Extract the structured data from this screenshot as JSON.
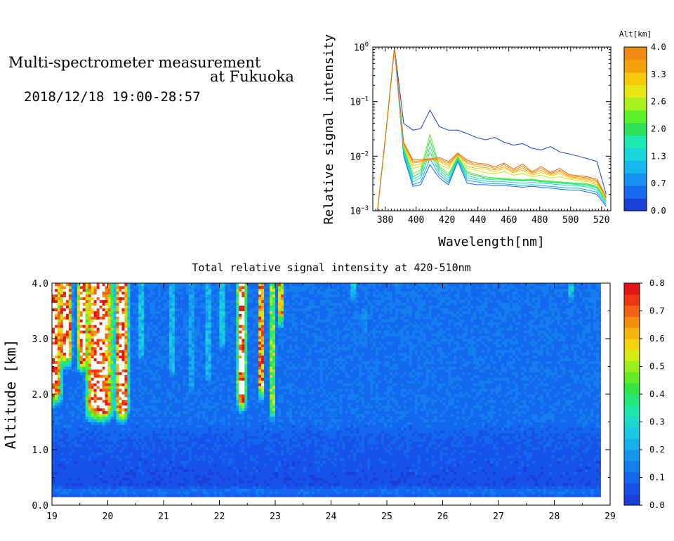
{
  "header": {
    "title_line1": "Multi-spectrometer measurement",
    "title_line2": "at Fukuoka",
    "date_range": "2018/12/18 19:00-28:57"
  },
  "chart_data": [
    {
      "type": "line",
      "xlabel": "Wavelength[nm]",
      "ylabel": "Relative signal intensity",
      "xlim": [
        372,
        526
      ],
      "ylim": [
        0.001,
        1
      ],
      "yscale": "log",
      "x_ticks": [
        380,
        400,
        420,
        440,
        460,
        480,
        500,
        520
      ],
      "y_ticks": [
        {
          "value": 1,
          "mantissa": "10",
          "exponent": "0"
        },
        {
          "value": 0.1,
          "mantissa": "10",
          "exponent": "−1"
        },
        {
          "value": 0.01,
          "mantissa": "10",
          "exponent": "−2"
        },
        {
          "value": 0.001,
          "mantissa": "10",
          "exponent": "−3"
        }
      ],
      "x": [
        375,
        380,
        386,
        392,
        398,
        403,
        409,
        415,
        421,
        427,
        433,
        439,
        445,
        451,
        457,
        463,
        469,
        475,
        481,
        487,
        493,
        499,
        505,
        511,
        517,
        523
      ],
      "series": [
        {
          "alt": 0.0,
          "color": "#1a3fd8",
          "values": [
            0.001,
            0.02,
            1.0,
            0.04,
            0.03,
            0.032,
            0.07,
            0.035,
            0.03,
            0.03,
            0.026,
            0.022,
            0.02,
            0.022,
            0.018,
            0.016,
            0.017,
            0.014,
            0.013,
            0.015,
            0.012,
            0.011,
            0.01,
            0.009,
            0.008,
            0.002
          ]
        },
        {
          "alt": 0.35,
          "color": "#1769ef",
          "values": [
            0.001,
            0.02,
            0.95,
            0.01,
            0.0028,
            0.003,
            0.007,
            0.004,
            0.003,
            0.008,
            0.0032,
            0.003,
            0.003,
            0.0029,
            0.0029,
            0.0028,
            0.0027,
            0.0028,
            0.0027,
            0.0026,
            0.0025,
            0.0024,
            0.0024,
            0.0022,
            0.002,
            0.0012
          ]
        },
        {
          "alt": 0.7,
          "color": "#16a6ee",
          "values": [
            0.001,
            0.02,
            0.95,
            0.011,
            0.003,
            0.0034,
            0.009,
            0.0045,
            0.0033,
            0.0085,
            0.0036,
            0.0034,
            0.0032,
            0.0031,
            0.0031,
            0.003,
            0.0029,
            0.003,
            0.0029,
            0.0028,
            0.0027,
            0.0026,
            0.0026,
            0.0024,
            0.0022,
            0.0013
          ]
        },
        {
          "alt": 1.0,
          "color": "#19d6da",
          "values": [
            0.001,
            0.02,
            0.95,
            0.012,
            0.0034,
            0.004,
            0.012,
            0.005,
            0.0036,
            0.009,
            0.004,
            0.0037,
            0.0035,
            0.0034,
            0.0034,
            0.0033,
            0.0032,
            0.0033,
            0.0032,
            0.0031,
            0.003,
            0.0029,
            0.0029,
            0.0027,
            0.0024,
            0.0014
          ]
        },
        {
          "alt": 1.3,
          "color": "#1ee8b4",
          "values": [
            0.001,
            0.02,
            0.95,
            0.013,
            0.0038,
            0.0045,
            0.015,
            0.0055,
            0.004,
            0.0092,
            0.0044,
            0.004,
            0.0038,
            0.0037,
            0.0037,
            0.0036,
            0.0035,
            0.0036,
            0.0034,
            0.0033,
            0.0032,
            0.0031,
            0.003,
            0.0029,
            0.0026,
            0.0015
          ]
        },
        {
          "alt": 1.7,
          "color": "#2ee05a",
          "values": [
            0.001,
            0.02,
            0.95,
            0.014,
            0.0042,
            0.005,
            0.02,
            0.006,
            0.0044,
            0.0095,
            0.0048,
            0.0044,
            0.004,
            0.0039,
            0.0038,
            0.0037,
            0.0036,
            0.0037,
            0.0035,
            0.0034,
            0.0033,
            0.0032,
            0.0031,
            0.003,
            0.0027,
            0.0015
          ]
        },
        {
          "alt": 2.0,
          "color": "#5ef02a",
          "values": [
            0.001,
            0.02,
            0.95,
            0.015,
            0.0048,
            0.0056,
            0.025,
            0.0065,
            0.0048,
            0.0098,
            0.0052,
            0.0046,
            0.0042,
            0.004,
            0.0039,
            0.0038,
            0.0037,
            0.0038,
            0.0036,
            0.0035,
            0.0034,
            0.0033,
            0.0032,
            0.0031,
            0.0028,
            0.0016
          ]
        },
        {
          "alt": 2.6,
          "color": "#c8e81a",
          "values": [
            0.001,
            0.02,
            0.95,
            0.016,
            0.006,
            0.0065,
            0.012,
            0.007,
            0.006,
            0.01,
            0.006,
            0.0055,
            0.005,
            0.0048,
            0.0052,
            0.0045,
            0.0048,
            0.0042,
            0.0045,
            0.004,
            0.0042,
            0.0038,
            0.0036,
            0.0034,
            0.003,
            0.0016
          ]
        },
        {
          "alt": 3.0,
          "color": "#f7c80c",
          "values": [
            0.001,
            0.02,
            0.95,
            0.016,
            0.0068,
            0.0072,
            0.009,
            0.008,
            0.0065,
            0.011,
            0.0065,
            0.006,
            0.0058,
            0.0052,
            0.006,
            0.005,
            0.0055,
            0.0045,
            0.005,
            0.0044,
            0.0048,
            0.004,
            0.0038,
            0.0036,
            0.0032,
            0.0017
          ]
        },
        {
          "alt": 3.3,
          "color": "#f5a20a",
          "values": [
            0.001,
            0.02,
            0.95,
            0.017,
            0.0075,
            0.0078,
            0.0085,
            0.0085,
            0.007,
            0.0105,
            0.0075,
            0.0065,
            0.0062,
            0.0056,
            0.0064,
            0.0052,
            0.006,
            0.0048,
            0.0055,
            0.0046,
            0.0052,
            0.0042,
            0.004,
            0.0038,
            0.0034,
            0.0017
          ]
        },
        {
          "alt": 3.7,
          "color": "#f08a10",
          "values": [
            0.001,
            0.02,
            0.95,
            0.017,
            0.008,
            0.0082,
            0.0088,
            0.009,
            0.0075,
            0.011,
            0.008,
            0.007,
            0.0068,
            0.006,
            0.007,
            0.0055,
            0.0066,
            0.005,
            0.006,
            0.0048,
            0.0056,
            0.0044,
            0.0042,
            0.004,
            0.0036,
            0.0018
          ]
        },
        {
          "alt": 4.0,
          "color": "#ec6a12",
          "values": [
            0.001,
            0.02,
            0.95,
            0.018,
            0.0085,
            0.0086,
            0.009,
            0.0095,
            0.008,
            0.0115,
            0.0085,
            0.0075,
            0.0072,
            0.0064,
            0.0075,
            0.0058,
            0.0072,
            0.0052,
            0.0065,
            0.005,
            0.006,
            0.0046,
            0.0044,
            0.0042,
            0.0038,
            0.0018
          ]
        }
      ],
      "colorbar": {
        "title": "Alt[km]",
        "ticks": [
          "0.0",
          "0.7",
          "1.3",
          "2.0",
          "2.6",
          "3.3",
          "4.0"
        ],
        "colors": [
          "#1a3fd8",
          "#1769ef",
          "#1691f0",
          "#16b6ee",
          "#19d6da",
          "#1ee8b4",
          "#2ee05a",
          "#5ef02a",
          "#a8f01e",
          "#e6e814",
          "#f7c80c",
          "#f5a20a",
          "#f08a10"
        ]
      }
    },
    {
      "type": "heatmap",
      "title": "Total relative signal intensity at 420-510nm",
      "ylabel": "Altitude [km]",
      "xlim": [
        19,
        29
      ],
      "ylim": [
        0,
        4
      ],
      "x_ticks": [
        "19",
        "20",
        "21",
        "22",
        "23",
        "24",
        "25",
        "26",
        "27",
        "28",
        "29"
      ],
      "y_ticks": [
        "0.0",
        "1.0",
        "2.0",
        "3.0",
        "4.0"
      ],
      "data_x_end": 28.83,
      "data_y_start": 0.15,
      "background": {
        "levels": [
          {
            "alt": 0.15,
            "value": 0.05
          },
          {
            "alt": 0.25,
            "value": 0.13
          },
          {
            "alt": 0.35,
            "value": 0.05
          },
          {
            "alt": 1.0,
            "value": 0.07
          },
          {
            "alt": 1.2,
            "value": 0.08
          },
          {
            "alt": 1.5,
            "value": 0.11
          },
          {
            "alt": 4.0,
            "value": 0.12
          }
        ]
      },
      "cloud_columns": [
        {
          "t": 19.0,
          "w": 0.22,
          "base": 1.9,
          "top": 4.0,
          "peak": 0.9
        },
        {
          "t": 19.25,
          "w": 0.14,
          "base": 2.6,
          "top": 4.0,
          "peak": 0.9
        },
        {
          "t": 19.55,
          "w": 0.12,
          "base": 2.5,
          "top": 4.0,
          "peak": 0.9
        },
        {
          "t": 19.85,
          "w": 0.3,
          "base": 1.6,
          "top": 4.0,
          "peak": 0.9
        },
        {
          "t": 20.25,
          "w": 0.15,
          "base": 1.6,
          "top": 4.0,
          "peak": 0.9
        },
        {
          "t": 20.6,
          "w": 0.06,
          "base": 2.6,
          "top": 4.0,
          "peak": 0.3
        },
        {
          "t": 21.15,
          "w": 0.05,
          "base": 2.3,
          "top": 4.0,
          "peak": 0.3
        },
        {
          "t": 21.5,
          "w": 0.05,
          "base": 2.0,
          "top": 4.0,
          "peak": 0.25
        },
        {
          "t": 21.8,
          "w": 0.05,
          "base": 2.2,
          "top": 4.0,
          "peak": 0.3
        },
        {
          "t": 22.05,
          "w": 0.05,
          "base": 2.8,
          "top": 4.0,
          "peak": 0.35
        },
        {
          "t": 22.4,
          "w": 0.1,
          "base": 1.8,
          "top": 4.0,
          "peak": 0.9
        },
        {
          "t": 22.75,
          "w": 0.06,
          "base": 2.0,
          "top": 4.0,
          "peak": 0.8
        },
        {
          "t": 22.95,
          "w": 0.08,
          "base": 1.6,
          "top": 4.0,
          "peak": 0.5
        },
        {
          "t": 23.1,
          "w": 0.05,
          "base": 3.3,
          "top": 4.0,
          "peak": 0.8
        },
        {
          "t": 24.4,
          "w": 0.08,
          "base": 3.7,
          "top": 4.0,
          "peak": 0.3
        },
        {
          "t": 24.6,
          "w": 0.06,
          "base": 3.0,
          "top": 3.5,
          "peak": 0.2
        },
        {
          "t": 25.2,
          "w": 0.06,
          "base": 3.8,
          "top": 4.0,
          "peak": 0.2
        },
        {
          "t": 28.3,
          "w": 0.08,
          "base": 3.7,
          "top": 4.0,
          "peak": 0.3
        }
      ],
      "colorbar": {
        "ticks": [
          "0.0",
          "0.1",
          "0.2",
          "0.3",
          "0.4",
          "0.5",
          "0.6",
          "0.7",
          "0.8"
        ],
        "colors": [
          "#1a3fd8",
          "#1652e8",
          "#1468f0",
          "#1480f0",
          "#1496ef",
          "#16b0ee",
          "#18c8e4",
          "#1ad8cc",
          "#1ee6aa",
          "#22e878",
          "#34e444",
          "#62ec28",
          "#9aee1c",
          "#d2ec14",
          "#f4d60e",
          "#f6b40c",
          "#f48e10",
          "#f26212",
          "#ee3614",
          "#e41414"
        ]
      }
    }
  ]
}
